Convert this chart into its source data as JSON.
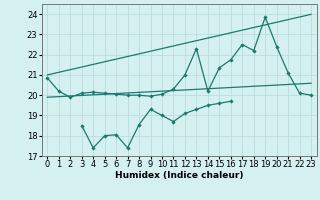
{
  "x": [
    0,
    1,
    2,
    3,
    4,
    5,
    6,
    7,
    8,
    9,
    10,
    11,
    12,
    13,
    14,
    15,
    16,
    17,
    18,
    19,
    20,
    21,
    22,
    23
  ],
  "line_upper_zigzag": [
    20.85,
    20.2,
    19.9,
    20.1,
    20.15,
    20.1,
    20.05,
    20.0,
    20.0,
    19.95,
    20.05,
    20.3,
    21.0,
    22.3,
    20.2,
    21.35,
    21.75,
    22.5,
    22.2,
    23.85,
    22.4,
    21.1,
    20.1,
    20.0
  ],
  "line_lower_zigzag": [
    null,
    null,
    null,
    18.5,
    17.4,
    18.0,
    18.05,
    17.4,
    18.55,
    19.3,
    19.0,
    18.7,
    19.1,
    19.3,
    19.5,
    19.6,
    19.7,
    null,
    null,
    null,
    null,
    null,
    null,
    null
  ],
  "line_trend_upper": [
    21.0,
    21.13,
    21.26,
    21.39,
    21.52,
    21.65,
    21.78,
    21.91,
    22.04,
    22.17,
    22.3,
    22.43,
    22.56,
    22.69,
    22.82,
    22.95,
    23.08,
    23.21,
    23.34,
    23.47,
    23.6,
    23.73,
    23.86,
    23.99
  ],
  "line_trend_lower": [
    19.9,
    19.93,
    19.96,
    19.99,
    20.02,
    20.05,
    20.08,
    20.11,
    20.14,
    20.17,
    20.2,
    20.23,
    20.26,
    20.29,
    20.32,
    20.35,
    20.38,
    20.41,
    20.44,
    20.47,
    20.5,
    20.53,
    20.56,
    20.59
  ],
  "color": "#1a7a6e",
  "bg_color": "#d5f0f0",
  "grid_color": "#bbdddd",
  "xlabel": "Humidex (Indice chaleur)",
  "ylim": [
    17,
    24.5
  ],
  "xlim": [
    -0.5,
    23.5
  ],
  "yticks": [
    17,
    18,
    19,
    20,
    21,
    22,
    23,
    24
  ],
  "xticks": [
    0,
    1,
    2,
    3,
    4,
    5,
    6,
    7,
    8,
    9,
    10,
    11,
    12,
    13,
    14,
    15,
    16,
    17,
    18,
    19,
    20,
    21,
    22,
    23
  ],
  "fontsize_label": 6.5,
  "fontsize_tick": 6.0
}
